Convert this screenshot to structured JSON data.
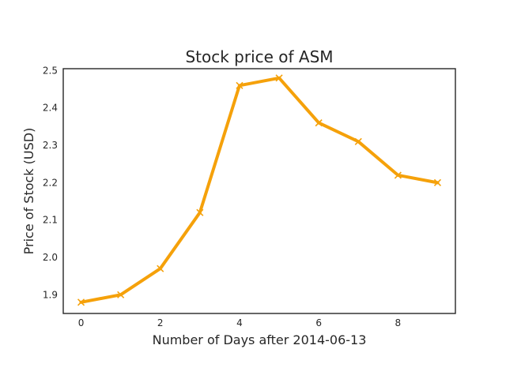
{
  "chart_data": {
    "type": "line",
    "title": "Stock price of ASM",
    "xlabel": "Number of Days after 2014-06-13",
    "ylabel": "Price of Stock (USD)",
    "x": [
      0,
      1,
      2,
      3,
      4,
      5,
      6,
      7,
      8,
      9
    ],
    "series": [
      {
        "values": [
          1.88,
          1.9,
          1.97,
          2.12,
          2.46,
          2.48,
          2.36,
          2.31,
          2.22,
          2.2
        ],
        "color": "#f5a10a",
        "marker": "x"
      }
    ],
    "xlim": [
      -0.45,
      9.45
    ],
    "ylim": [
      1.85,
      2.505
    ],
    "xticks": [
      0,
      2,
      4,
      6,
      8
    ],
    "xtick_labels": [
      "0",
      "2",
      "4",
      "6",
      "8"
    ],
    "yticks": [
      1.9,
      2.0,
      2.1,
      2.2,
      2.3,
      2.4,
      2.5
    ],
    "ytick_labels": [
      "1.9",
      "2.0",
      "2.1",
      "2.2",
      "2.3",
      "2.4",
      "2.5"
    ],
    "grid": false,
    "legend": false
  }
}
